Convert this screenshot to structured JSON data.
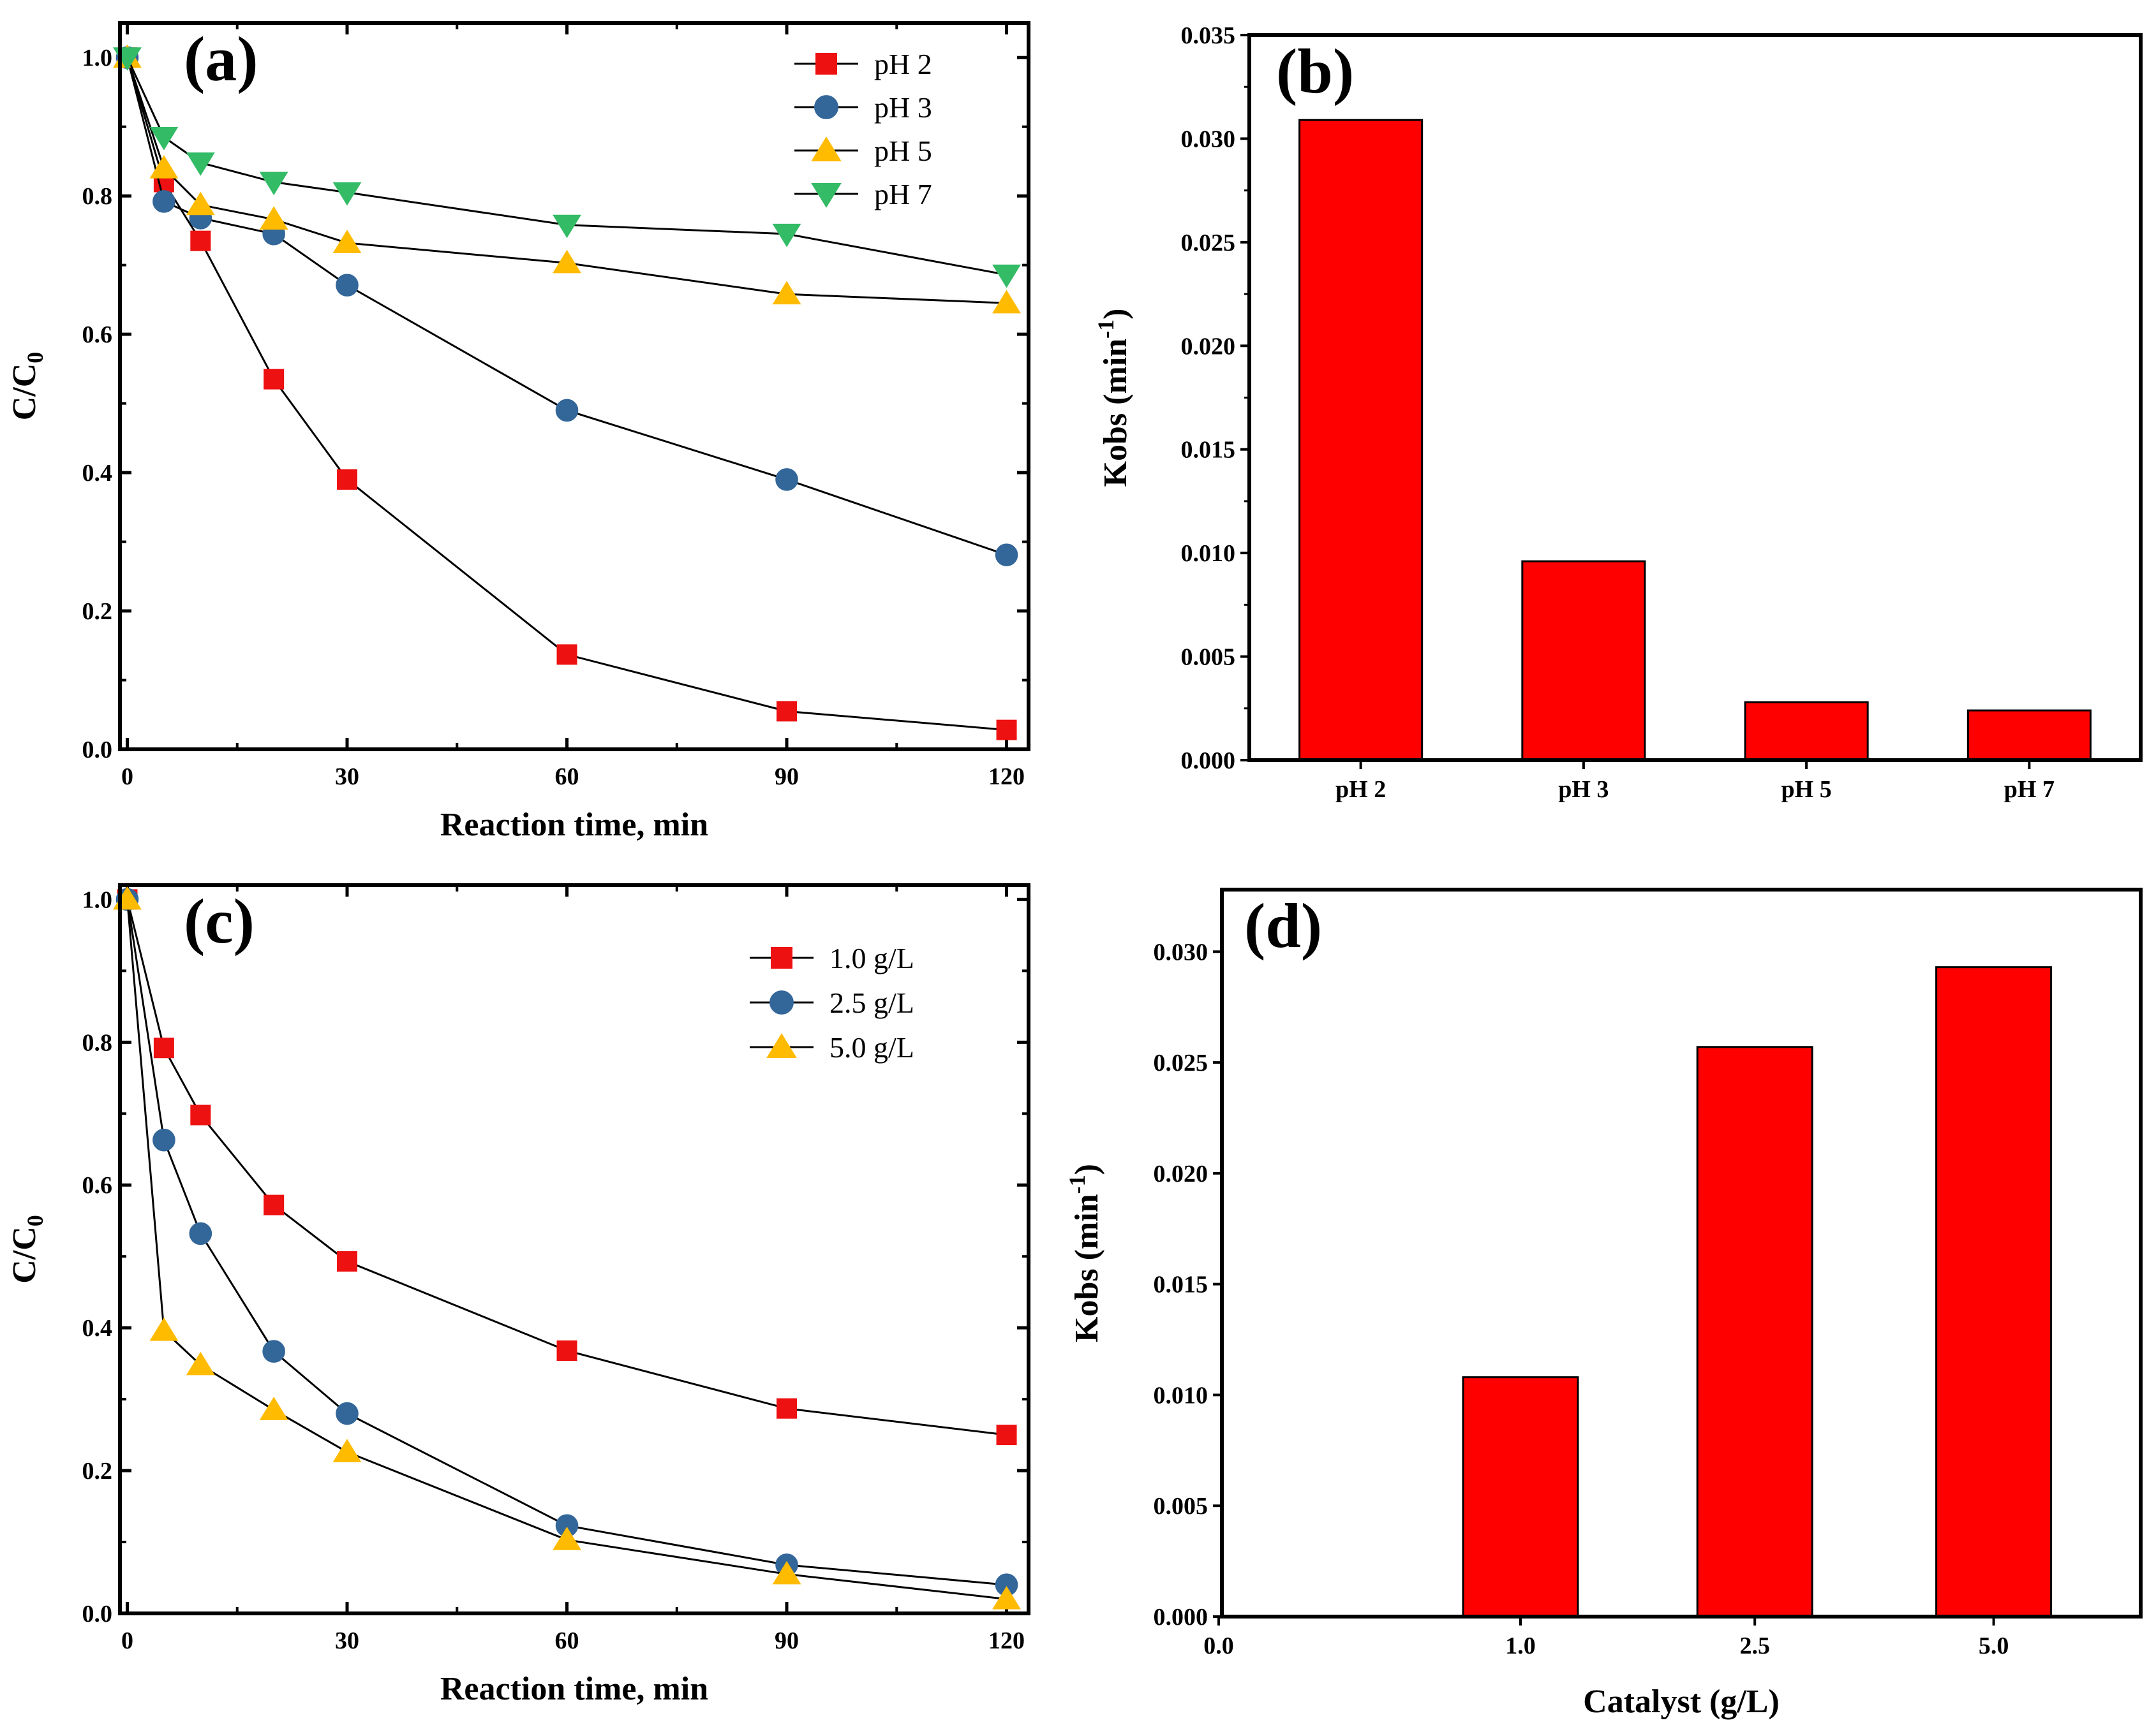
{
  "chart_data": [
    {
      "panel": "(a)",
      "type": "line",
      "xlabel": "Reaction time, min",
      "ylabel": "C/C",
      "ylabel_sub": "0",
      "xlim": [
        -1,
        123
      ],
      "ylim": [
        0,
        1.05
      ],
      "xticks": [
        0,
        30,
        60,
        90,
        120
      ],
      "yticks": [
        0.0,
        0.2,
        0.4,
        0.6,
        0.8,
        1.0
      ],
      "xtick_labels": [
        "0",
        "30",
        "60",
        "90",
        "120"
      ],
      "ytick_labels": [
        "0.0",
        "0.2",
        "0.4",
        "0.6",
        "0.8",
        "1.0"
      ],
      "x": [
        0,
        5,
        10,
        20,
        30,
        60,
        90,
        120
      ],
      "legend_position": "top-right",
      "series": [
        {
          "name": "pH 2",
          "marker": "square",
          "color": "#ee1111",
          "values": [
            1.0,
            0.82,
            0.735,
            0.535,
            0.39,
            0.137,
            0.055,
            0.028
          ]
        },
        {
          "name": "pH 3",
          "marker": "circle",
          "color": "#336699",
          "values": [
            1.0,
            0.792,
            0.768,
            0.745,
            0.671,
            0.49,
            0.39,
            0.281
          ]
        },
        {
          "name": "pH 5",
          "marker": "triangle-up",
          "color": "#ffbb00",
          "values": [
            1.0,
            0.84,
            0.787,
            0.766,
            0.732,
            0.703,
            0.658,
            0.645
          ]
        },
        {
          "name": "pH 7",
          "marker": "triangle-down",
          "color": "#33bb66",
          "values": [
            1.0,
            0.885,
            0.848,
            0.82,
            0.805,
            0.758,
            0.745,
            0.686
          ]
        }
      ]
    },
    {
      "panel": "(b)",
      "type": "bar",
      "xlabel": "",
      "ylabel": "Kobs (min",
      "ylabel_sup": "-1",
      "ylabel_end": ")",
      "categories": [
        "pH 2",
        "pH 3",
        "pH 5",
        "pH 7"
      ],
      "values": [
        0.0309,
        0.0096,
        0.0028,
        0.0024
      ],
      "ylim": [
        0,
        0.035
      ],
      "yticks": [
        0,
        0.005,
        0.01,
        0.015,
        0.02,
        0.025,
        0.03,
        0.035
      ],
      "ytick_labels": [
        "0.000",
        "0.005",
        "0.010",
        "0.015",
        "0.020",
        "0.025",
        "0.030",
        "0.035"
      ],
      "color": "#ff0000"
    },
    {
      "panel": "(c)",
      "type": "line",
      "xlabel": "Reaction time, min",
      "ylabel": "C/C",
      "ylabel_sub": "0",
      "xlim": [
        -1,
        123
      ],
      "ylim": [
        0,
        1.02
      ],
      "xticks": [
        0,
        30,
        60,
        90,
        120
      ],
      "yticks": [
        0.0,
        0.2,
        0.4,
        0.6,
        0.8,
        1.0
      ],
      "xtick_labels": [
        "0",
        "30",
        "60",
        "90",
        "120"
      ],
      "ytick_labels": [
        "0.0",
        "0.2",
        "0.4",
        "0.6",
        "0.8",
        "1.0"
      ],
      "x": [
        0,
        5,
        10,
        20,
        30,
        60,
        90,
        120
      ],
      "legend_position": "top-right",
      "series": [
        {
          "name": "1.0 g/L",
          "marker": "square",
          "color": "#ee1111",
          "values": [
            1.0,
            0.792,
            0.698,
            0.572,
            0.493,
            0.368,
            0.287,
            0.25
          ]
        },
        {
          "name": "2.5 g/L",
          "marker": "circle",
          "color": "#336699",
          "values": [
            1.0,
            0.663,
            0.532,
            0.367,
            0.28,
            0.123,
            0.068,
            0.04
          ]
        },
        {
          "name": "5.0 g/L",
          "marker": "triangle-up",
          "color": "#ffbb00",
          "values": [
            1.0,
            0.396,
            0.348,
            0.285,
            0.226,
            0.103,
            0.055,
            0.02
          ]
        }
      ]
    },
    {
      "panel": "(d)",
      "type": "bar",
      "xlabel": "Catalyst (g/L)",
      "ylabel": "Kobs (min",
      "ylabel_sup": "-1",
      "ylabel_end": ")",
      "categories": [
        "1.0",
        "2.5",
        "5.0"
      ],
      "x": [
        1.0,
        2.5,
        5.0
      ],
      "xticks": [
        0.0,
        1.0,
        2.5,
        5.0
      ],
      "xtick_labels": [
        "0.0",
        "1.0",
        "2.5",
        "5.0"
      ],
      "xlim": [
        0,
        6.5
      ],
      "values": [
        0.0108,
        0.0257,
        0.0293
      ],
      "ylim": [
        0,
        0.0328
      ],
      "yticks": [
        0,
        0.005,
        0.01,
        0.015,
        0.02,
        0.025,
        0.03
      ],
      "ytick_labels": [
        "0.000",
        "0.005",
        "0.010",
        "0.015",
        "0.020",
        "0.025",
        "0.030"
      ],
      "color": "#ff0000"
    }
  ]
}
